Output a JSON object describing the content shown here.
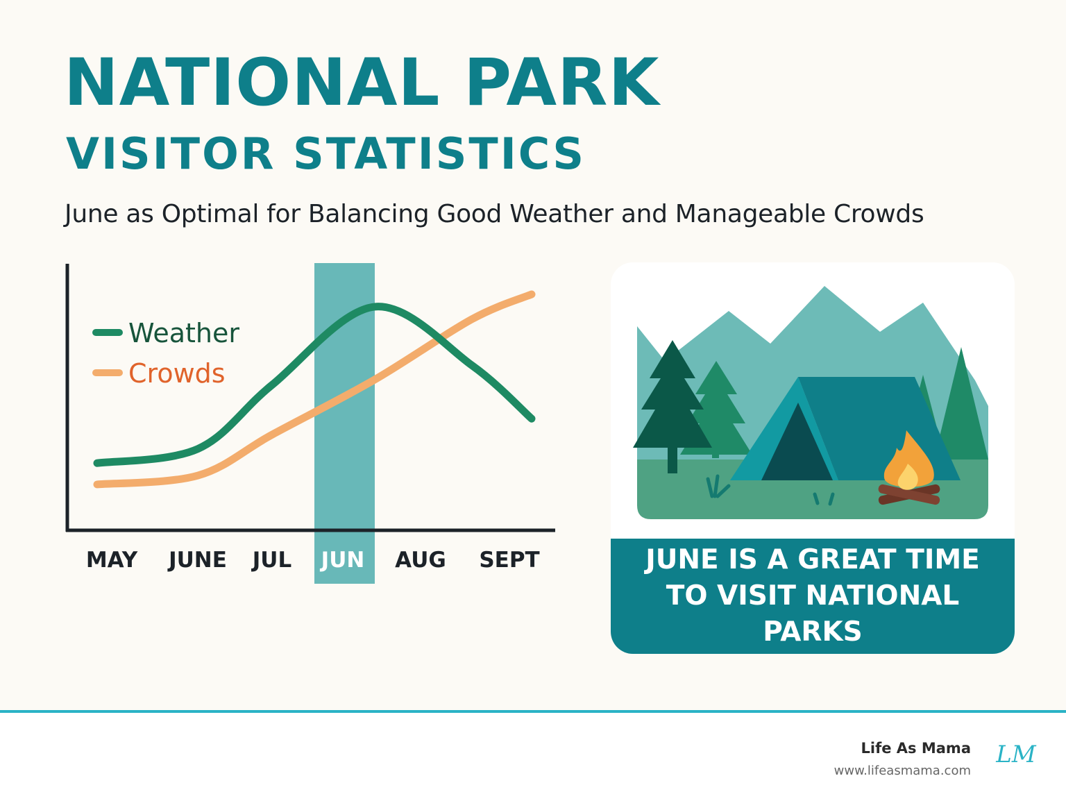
{
  "header": {
    "title": "NATIONAL PARK",
    "subtitle_heading": "VISITOR STATISTICS",
    "tagline": "June as Optimal for Balancing Good Weather and Manageable Crowds"
  },
  "chart_data": {
    "type": "line",
    "categories": [
      "MAY",
      "JUNE",
      "JUL",
      "JUN",
      "AUG",
      "SEPT"
    ],
    "highlight_category": "JUN",
    "legend": "top-left",
    "grid": false,
    "ylim": [
      0,
      100
    ],
    "series": [
      {
        "name": "Weather",
        "color": "#1e8a63",
        "label_color": "#17543b",
        "values": [
          5,
          13,
          49,
          93,
          60,
          30
        ]
      },
      {
        "name": "Crowds",
        "color": "#f3ac6c",
        "label_color": "#e0632b",
        "values": [
          -7,
          -2,
          21,
          52,
          86,
          100
        ]
      }
    ]
  },
  "banner": {
    "text": "JUNE IS A GREAT TIME TO VISIT NATIONAL PARKS"
  },
  "footer": {
    "brand": "Life As Mama",
    "url": "www.lifeasmama.com",
    "logo_text": "LM"
  },
  "colors": {
    "teal": "#0e7f8a",
    "highlight": "#68b8b8",
    "background": "#fcfaf5",
    "footer_line": "#2ab3c6"
  }
}
